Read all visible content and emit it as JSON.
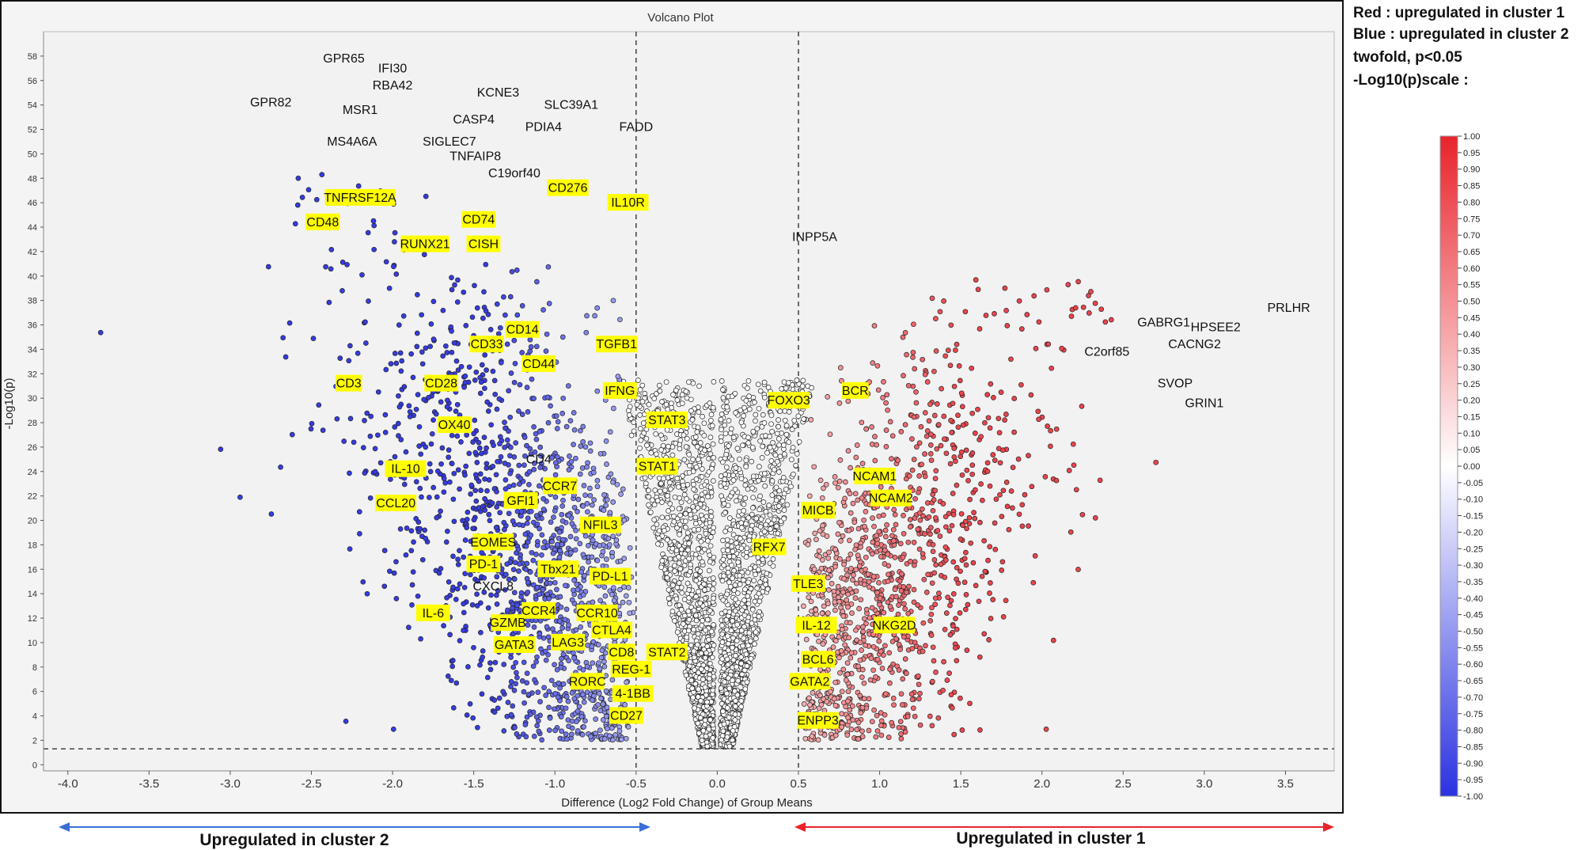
{
  "chart_data": {
    "type": "scatter",
    "title": "Volcano Plot",
    "xlabel": "Difference (Log2 Fold Change) of Group Means",
    "ylabel": "-Log10(p)",
    "xlim": [
      -4.15,
      3.8
    ],
    "ylim": [
      -0.5,
      60
    ],
    "x_ticks": [
      -4.0,
      -3.5,
      -3.0,
      -2.5,
      -2.0,
      -1.5,
      -1.0,
      -0.5,
      0.0,
      0.5,
      1.0,
      1.5,
      2.0,
      2.5,
      3.0,
      3.5
    ],
    "x_tick_labels": [
      "-4.0",
      "-3.5",
      "-3.0",
      "-2.5",
      "-2.0",
      "-1.5",
      "-1.0",
      "-0.5",
      "0.0",
      "0.5",
      "1.0",
      "1.5",
      "2.0",
      "2.5",
      "3.0",
      "3.5"
    ],
    "y_ticks": [
      0,
      2,
      4,
      6,
      8,
      10,
      12,
      14,
      16,
      18,
      20,
      22,
      24,
      26,
      28,
      30,
      32,
      34,
      36,
      38,
      40,
      42,
      44,
      46,
      48,
      50,
      52,
      54,
      56,
      58
    ],
    "y_tick_labels": [
      "0",
      "2",
      "4",
      "6",
      "8",
      "10",
      "12",
      "14",
      "16",
      "18",
      "20",
      "22",
      "24",
      "26",
      "28",
      "30",
      "32",
      "34",
      "36",
      "38",
      "40",
      "42",
      "44",
      "46",
      "48",
      "50",
      "52",
      "54",
      "56",
      "58"
    ],
    "thresholds": {
      "x": [
        -0.5,
        0.5
      ],
      "y": 1.3
    },
    "grid": false,
    "colors": {
      "up_cluster1": "#e8232b",
      "up_cluster2": "#2b32e0",
      "neutral": "#ffffff",
      "highlight": "#ffff00"
    },
    "gene_labels": [
      {
        "name": "GPR65",
        "x": -2.3,
        "y": 57.8,
        "hl": false
      },
      {
        "name": "IFI30",
        "x": -2.0,
        "y": 57.0,
        "hl": false
      },
      {
        "name": "RBA42",
        "x": -2.0,
        "y": 55.6,
        "hl": false
      },
      {
        "name": "GPR82",
        "x": -2.75,
        "y": 54.2,
        "hl": false
      },
      {
        "name": "MSR1",
        "x": -2.2,
        "y": 53.6,
        "hl": false
      },
      {
        "name": "KCNE3",
        "x": -1.35,
        "y": 55.0,
        "hl": false
      },
      {
        "name": "SLC39A1",
        "x": -0.9,
        "y": 54.0,
        "hl": false
      },
      {
        "name": "CASP4",
        "x": -1.5,
        "y": 52.8,
        "hl": false
      },
      {
        "name": "PDIA4",
        "x": -1.07,
        "y": 52.2,
        "hl": false
      },
      {
        "name": "FADD",
        "x": -0.5,
        "y": 52.2,
        "hl": false
      },
      {
        "name": "MS4A6A",
        "x": -2.25,
        "y": 51.0,
        "hl": false
      },
      {
        "name": "SIGLEC7",
        "x": -1.65,
        "y": 51.0,
        "hl": false
      },
      {
        "name": "TNFAIP8",
        "x": -1.49,
        "y": 49.8,
        "hl": false
      },
      {
        "name": "C19orf40",
        "x": -1.25,
        "y": 48.4,
        "hl": false
      },
      {
        "name": "CD276",
        "x": -0.92,
        "y": 47.2,
        "hl": true
      },
      {
        "name": "TNFRSF12A",
        "x": -2.2,
        "y": 46.4,
        "hl": true
      },
      {
        "name": "IL10R",
        "x": -0.55,
        "y": 46.0,
        "hl": true
      },
      {
        "name": "CD74",
        "x": -1.47,
        "y": 44.6,
        "hl": true
      },
      {
        "name": "CD48",
        "x": -2.43,
        "y": 44.4,
        "hl": true
      },
      {
        "name": "RUNX21",
        "x": -1.8,
        "y": 42.6,
        "hl": true
      },
      {
        "name": "CISH",
        "x": -1.44,
        "y": 42.6,
        "hl": true
      },
      {
        "name": "INPP5A",
        "x": 0.6,
        "y": 43.2,
        "hl": false
      },
      {
        "name": "PRLHR",
        "x": 3.52,
        "y": 37.4,
        "hl": false
      },
      {
        "name": "GABRG1",
        "x": 2.75,
        "y": 36.2,
        "hl": false
      },
      {
        "name": "HPSEE2",
        "x": 3.07,
        "y": 35.8,
        "hl": false
      },
      {
        "name": "CD14",
        "x": -1.2,
        "y": 35.6,
        "hl": true
      },
      {
        "name": "CACNG2",
        "x": 2.94,
        "y": 34.4,
        "hl": false
      },
      {
        "name": "CD33",
        "x": -1.42,
        "y": 34.4,
        "hl": true
      },
      {
        "name": "TGFB1",
        "x": -0.62,
        "y": 34.4,
        "hl": true
      },
      {
        "name": "C2orf85",
        "x": 2.4,
        "y": 33.8,
        "hl": false
      },
      {
        "name": "CD44",
        "x": -1.1,
        "y": 32.8,
        "hl": true
      },
      {
        "name": "CD3",
        "x": -2.27,
        "y": 31.2,
        "hl": true
      },
      {
        "name": "CD28",
        "x": -1.7,
        "y": 31.2,
        "hl": true
      },
      {
        "name": "SVOP",
        "x": 2.82,
        "y": 31.2,
        "hl": false
      },
      {
        "name": "BCR",
        "x": 0.85,
        "y": 30.6,
        "hl": true
      },
      {
        "name": "IFNG",
        "x": -0.6,
        "y": 30.6,
        "hl": true
      },
      {
        "name": "FOXO3",
        "x": 0.44,
        "y": 29.8,
        "hl": true
      },
      {
        "name": "GRIN1",
        "x": 3.0,
        "y": 29.6,
        "hl": false
      },
      {
        "name": "STAT3",
        "x": -0.31,
        "y": 28.2,
        "hl": true
      },
      {
        "name": "OX40",
        "x": -1.62,
        "y": 27.8,
        "hl": true
      },
      {
        "name": "CD4",
        "x": -1.1,
        "y": 25.0,
        "hl": false
      },
      {
        "name": "STAT1",
        "x": -0.37,
        "y": 24.4,
        "hl": true
      },
      {
        "name": "IL-10",
        "x": -1.92,
        "y": 24.2,
        "hl": true
      },
      {
        "name": "NCAM1",
        "x": 0.97,
        "y": 23.6,
        "hl": true
      },
      {
        "name": "CCR7",
        "x": -0.97,
        "y": 22.8,
        "hl": true
      },
      {
        "name": "GFI1",
        "x": -1.21,
        "y": 21.6,
        "hl": true
      },
      {
        "name": "NCAM2",
        "x": 1.07,
        "y": 21.8,
        "hl": true
      },
      {
        "name": "CCL20",
        "x": -1.98,
        "y": 21.4,
        "hl": true
      },
      {
        "name": "MICB",
        "x": 0.62,
        "y": 20.8,
        "hl": true
      },
      {
        "name": "NFIL3",
        "x": -0.72,
        "y": 19.6,
        "hl": true
      },
      {
        "name": "EOMES",
        "x": -1.38,
        "y": 18.2,
        "hl": true
      },
      {
        "name": "RFX7",
        "x": 0.32,
        "y": 17.8,
        "hl": true
      },
      {
        "name": "PD-1",
        "x": -1.44,
        "y": 16.4,
        "hl": true
      },
      {
        "name": "Tbx21",
        "x": -0.98,
        "y": 16.0,
        "hl": true
      },
      {
        "name": "PD-L1",
        "x": -0.66,
        "y": 15.4,
        "hl": true
      },
      {
        "name": "TLE3",
        "x": 0.56,
        "y": 14.8,
        "hl": true
      },
      {
        "name": "CXCL8",
        "x": -1.38,
        "y": 14.6,
        "hl": false
      },
      {
        "name": "IL-6",
        "x": -1.75,
        "y": 12.4,
        "hl": true
      },
      {
        "name": "CCR4",
        "x": -1.1,
        "y": 12.6,
        "hl": true
      },
      {
        "name": "CCR10",
        "x": -0.74,
        "y": 12.4,
        "hl": true
      },
      {
        "name": "GZMB",
        "x": -1.29,
        "y": 11.6,
        "hl": true
      },
      {
        "name": "IL-12",
        "x": 0.61,
        "y": 11.4,
        "hl": true
      },
      {
        "name": "NKG2D",
        "x": 1.09,
        "y": 11.4,
        "hl": true
      },
      {
        "name": "CTLA4",
        "x": -0.65,
        "y": 11.0,
        "hl": true
      },
      {
        "name": "GATA3",
        "x": -1.25,
        "y": 9.8,
        "hl": true
      },
      {
        "name": "LAG3",
        "x": -0.92,
        "y": 10.0,
        "hl": true
      },
      {
        "name": "CD8",
        "x": -0.59,
        "y": 9.2,
        "hl": true
      },
      {
        "name": "STAT2",
        "x": -0.31,
        "y": 9.2,
        "hl": true
      },
      {
        "name": "BCL6",
        "x": 0.62,
        "y": 8.6,
        "hl": true
      },
      {
        "name": "REG-1",
        "x": -0.53,
        "y": 7.8,
        "hl": true
      },
      {
        "name": "RORC",
        "x": -0.8,
        "y": 6.8,
        "hl": true
      },
      {
        "name": "GATA2",
        "x": 0.57,
        "y": 6.8,
        "hl": true
      },
      {
        "name": "4-1BB",
        "x": -0.52,
        "y": 5.8,
        "hl": true
      },
      {
        "name": "CD27",
        "x": -0.56,
        "y": 4.0,
        "hl": true
      },
      {
        "name": "ENPP3",
        "x": 0.62,
        "y": 3.6,
        "hl": true
      }
    ]
  },
  "legend": {
    "lines": [
      "Red : upregulated in cluster 1",
      "Blue : upregulated in cluster 2",
      "twofold, p<0.05",
      "-Log10(p)scale :"
    ]
  },
  "colorbar": {
    "min": -1.0,
    "max": 1.0,
    "ticks": [
      "1.00",
      "0.95",
      "0.90",
      "0.85",
      "0.80",
      "0.75",
      "0.70",
      "0.65",
      "0.60",
      "0.55",
      "0.50",
      "0.45",
      "0.40",
      "0.35",
      "0.30",
      "0.25",
      "0.20",
      "0.15",
      "0.10",
      "0.05",
      "0.00",
      "-0.05",
      "-0.10",
      "-0.15",
      "-0.20",
      "-0.25",
      "-0.30",
      "-0.35",
      "-0.40",
      "-0.45",
      "-0.50",
      "-0.55",
      "-0.60",
      "-0.65",
      "-0.70",
      "-0.75",
      "-0.80",
      "-0.85",
      "-0.90",
      "-0.95",
      "-1.00"
    ],
    "color_max": "#e8232b",
    "color_mid": "#ffffff",
    "color_min": "#2b32e0"
  },
  "arrows": {
    "left_label": "Upregulated in cluster 2",
    "right_label": "Upregulated in cluster 1",
    "left_color": "#3a6fd8",
    "right_color": "#e8232b"
  }
}
